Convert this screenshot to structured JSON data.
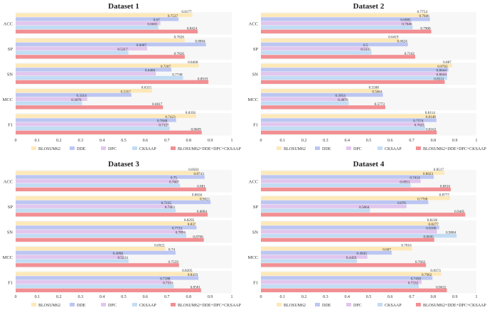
{
  "chart_data": [
    {
      "type": "bar",
      "orientation": "horizontal",
      "title": "Dataset 1",
      "categories": [
        "ACC",
        "SP",
        "SN",
        "MCC",
        "F1"
      ],
      "xlim": [
        0,
        1
      ],
      "xticks": [
        "0",
        "0.1",
        "0.2",
        "0.3",
        "0.4",
        "0.5",
        "0.6",
        "0.7",
        "0.8",
        "0.9",
        "1"
      ],
      "legend_position": "bottom",
      "series": [
        {
          "name": "BLOSUM62",
          "color": "#fde8b8",
          "values": [
            0.8177,
            0.7826,
            0.8468,
            0.6315,
            0.8356
          ],
          "labels": [
            "0.8177",
            "0.7826",
            "0.8468",
            "0.6315",
            "0.8356"
          ]
        },
        {
          "name": "DDE",
          "color": "#bcc6f2",
          "values": [
            0.7537,
            0.8804,
            0.7207,
            0.5357,
            0.7423
          ],
          "labels": [
            "0.7537",
            "0.8804",
            "0.7207",
            "0.5357",
            "0.7423"
          ]
        },
        {
          "name": "DPC",
          "color": "#e1c6ee",
          "values": [
            0.67,
            0.6087,
            0.6486,
            0.3314,
            0.7048
          ],
          "labels": [
            "0.67",
            "0.6087",
            "0.6486",
            "0.3314",
            "0.7048"
          ]
        },
        {
          "name": "CKSAAP",
          "color": "#c2dcf4",
          "values": [
            0.6601,
            0.5217,
            0.7748,
            0.3076,
            0.7127
          ],
          "labels": [
            "0.6601",
            "0.5217",
            "0.7748",
            "0.3076",
            "0.7127"
          ]
        },
        {
          "name": "BLOSUM62+DDE+DPC+CKSAAP",
          "color": "#f28f93",
          "values": [
            0.8424,
            0.7826,
            0.8919,
            0.6817,
            0.8609
          ],
          "labels": [
            "0.8424",
            "0.7826",
            "0.8919",
            "0.6817",
            "0.8609"
          ]
        }
      ]
    },
    {
      "type": "bar",
      "orientation": "horizontal",
      "title": "Dataset 2",
      "categories": [
        "ACC",
        "SP",
        "SN",
        "MCC",
        "F1"
      ],
      "xlim": [
        0,
        1
      ],
      "xticks": [
        "0",
        "0.1",
        "0.2",
        "0.3",
        "0.4",
        "0.5",
        "0.6",
        "0.7",
        "0.8",
        "0.9",
        "1"
      ],
      "legend_position": "bottom",
      "series": [
        {
          "name": "BLOSUM62",
          "color": "#fde8b8",
          "values": [
            0.7754,
            0.6419,
            0.887,
            0.5508,
            0.8114
          ],
          "labels": [
            "0.7754",
            "0.6419",
            "0.887",
            "0.5508",
            "0.8114"
          ]
        },
        {
          "name": "DDE",
          "color": "#bcc6f2",
          "values": [
            0.7846,
            0.6824,
            0.8702,
            0.5664,
            0.8148
          ],
          "labels": [
            "0.7846",
            "0.6824",
            "0.8702",
            "0.5664",
            "0.8148"
          ]
        },
        {
          "name": "DPC",
          "color": "#e1c6ee",
          "values": [
            0.6985,
            0.5,
            0.8644,
            0.3954,
            0.7574
          ],
          "labels": [
            "0.6985",
            "0.5",
            "0.8644",
            "0.3954",
            "0.7574"
          ]
        },
        {
          "name": "CKSAAP",
          "color": "#c2dcf4",
          "values": [
            0.7046,
            0.5135,
            0.8644,
            0.4078,
            0.7625
          ],
          "labels": [
            "0.7046",
            "0.5135",
            "0.8644",
            "0.4078",
            "0.7625"
          ]
        },
        {
          "name": "BLOSUM62+DDE+DPC+CKSAAP",
          "color": "#f28f93",
          "values": [
            0.7908,
            0.7162,
            0.8531,
            0.5773,
            0.8162
          ],
          "labels": [
            "0.7908",
            "0.7162",
            "0.8531",
            "0.5773",
            "0.8162"
          ]
        }
      ]
    },
    {
      "type": "bar",
      "orientation": "horizontal",
      "title": "Dataset 3",
      "categories": [
        "ACC",
        "SP",
        "SN",
        "MCC",
        "F1"
      ],
      "xlim": [
        0,
        1
      ],
      "xticks": [
        "0",
        "0.1",
        "0.2",
        "0.3",
        "0.4",
        "0.5",
        "0.6",
        "0.7",
        "0.8",
        "0.9",
        "1"
      ],
      "legend_position": "bottom",
      "series": [
        {
          "name": "BLOSUM62",
          "color": "#fde8b8",
          "values": [
            0.8503,
            0.8656,
            0.8295,
            0.6922,
            0.8205
          ],
          "labels": [
            "0.8503",
            "0.8656",
            "0.8295",
            "0.6922",
            "0.8205"
          ]
        },
        {
          "name": "DDE",
          "color": "#bcc6f2",
          "values": [
            0.8743,
            0.9021,
            0.837,
            0.74,
            0.8459
          ],
          "labels": [
            "0.8743",
            "0.9021",
            "0.837",
            "0.74",
            "0.8459"
          ]
        },
        {
          "name": "DPC",
          "color": "#e1c6ee",
          "values": [
            0.75,
            0.7235,
            0.7733,
            0.4998,
            0.7188
          ],
          "labels": [
            "0.75",
            "0.7235",
            "0.7733",
            "0.4998",
            "0.7188"
          ]
        },
        {
          "name": "CKSAAP",
          "color": "#c2dcf4",
          "values": [
            0.7607,
            0.7403,
            0.7896,
            0.5224,
            0.7316
          ],
          "labels": [
            "0.7607",
            "0.7403",
            "0.7896",
            "0.5224",
            "0.7316"
          ]
        },
        {
          "name": "BLOSUM62+DDE+DPC+CKSAAP",
          "color": "#f28f93",
          "values": [
            0.881,
            0.8884,
            0.8706,
            0.7559,
            0.8581
          ],
          "labels": [
            "0.881",
            "0.8884",
            "0.8706",
            "0.7559",
            "0.8581"
          ]
        }
      ]
    },
    {
      "type": "bar",
      "orientation": "horizontal",
      "title": "Dataset 4",
      "categories": [
        "ACC",
        "SP",
        "SN",
        "MCC",
        "F1"
      ],
      "xlim": [
        0,
        1
      ],
      "xticks": [
        "0",
        "0.1",
        "0.2",
        "0.3",
        "0.4",
        "0.5",
        "0.6",
        "0.7",
        "0.8",
        "0.9",
        "1"
      ],
      "legend_position": "bottom",
      "series": [
        {
          "name": "BLOSUM62",
          "color": "#fde8b8",
          "values": [
            0.8517,
            0.8777,
            0.8218,
            0.7016,
            0.8373
          ],
          "labels": [
            "0.8517",
            "0.8777",
            "0.8218",
            "0.7016",
            "0.8373"
          ]
        },
        {
          "name": "DDE",
          "color": "#bcc6f2",
          "values": [
            0.8023,
            0.7768,
            0.8277,
            0.607,
            0.7962
          ],
          "labels": [
            "0.8023",
            "0.7768",
            "0.8277",
            "0.607",
            "0.7962"
          ]
        },
        {
          "name": "DPC",
          "color": "#e1c6ee",
          "values": [
            0.7414,
            0.676,
            0.8168,
            0.4943,
            0.7458
          ],
          "labels": [
            "0.7414",
            "0.676",
            "0.8168",
            "0.4943",
            "0.7458"
          ]
        },
        {
          "name": "CKSAAP",
          "color": "#c2dcf4",
          "values": [
            0.6951,
            0.5064,
            0.9084,
            0.4459,
            0.7332
          ],
          "labels": [
            "0.6951",
            "0.5064",
            "0.9084",
            "0.4459",
            "0.7332"
          ]
        },
        {
          "name": "BLOSUM62+DDE+DPC+CKSAAP",
          "color": "#f28f93",
          "values": [
            0.8816,
            0.9485,
            0.8045,
            0.7662,
            0.8632
          ],
          "labels": [
            "0.8816",
            "0.9485",
            "0.8045",
            "0.7662",
            "0.8632"
          ]
        }
      ]
    }
  ]
}
